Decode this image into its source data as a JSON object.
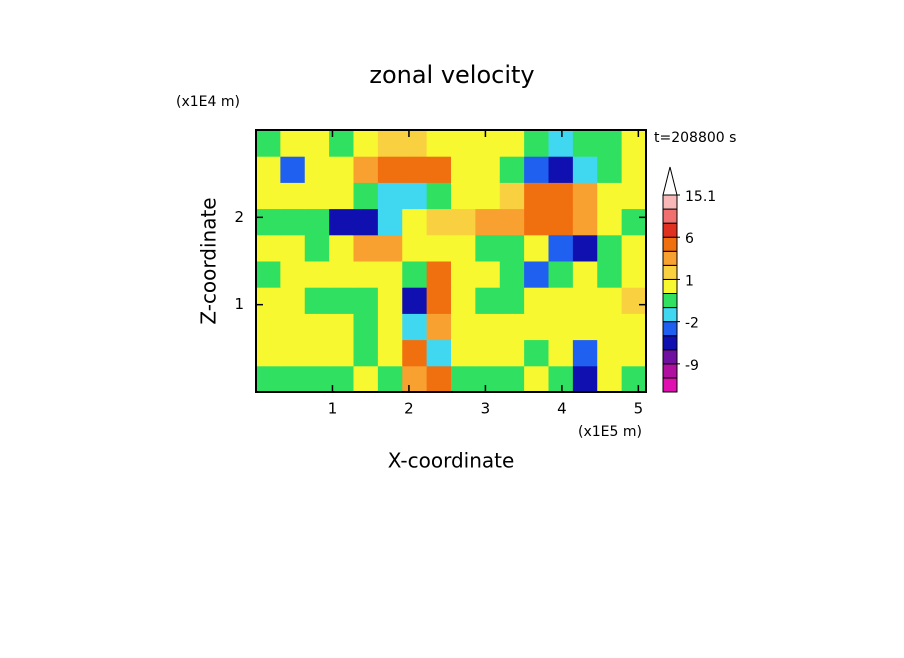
{
  "chart_data": {
    "type": "heatmap",
    "title": "zonal velocity",
    "xlabel": "X-coordinate",
    "ylabel": "Z-coordinate",
    "x_unit": "(x1E5 m)",
    "y_unit": "(x1E4 m)",
    "annotation": "t=208800 s",
    "xlim": [
      0,
      5.1
    ],
    "ylim": [
      0,
      3
    ],
    "xticks": [
      1,
      2,
      3,
      4,
      5
    ],
    "yticks": [
      1,
      2
    ],
    "z": [
      [
        -0.5,
        -0.5,
        -0.5,
        -0.5,
        0,
        -0.5,
        2,
        4,
        -0.5,
        -0.5,
        -0.5,
        0.5,
        -1,
        -4,
        0.5,
        -0.5
      ],
      [
        0.5,
        0.5,
        0.5,
        0.5,
        -0.5,
        0.5,
        3,
        -2,
        0.5,
        0.5,
        0.5,
        -0.5,
        0.5,
        -3,
        0.5,
        0.5
      ],
      [
        0.5,
        0.5,
        0.5,
        0,
        -0.5,
        0.5,
        -2,
        2,
        0.5,
        0.5,
        0,
        0,
        0.5,
        0.5,
        0.5,
        0.5
      ],
      [
        0.5,
        0.5,
        -0.5,
        -1,
        -0.5,
        0,
        -6,
        3,
        0.5,
        -0.5,
        -0.5,
        0,
        0.5,
        0,
        0.5,
        1
      ],
      [
        -0.5,
        0.5,
        0.5,
        0,
        0.5,
        0.5,
        -0.5,
        4,
        0.5,
        0,
        -1,
        -3,
        -0.5,
        0,
        -0.5,
        0
      ],
      [
        0.5,
        0,
        -1,
        0.5,
        2,
        2,
        0.5,
        0.5,
        0.5,
        -1,
        -0.5,
        0,
        -3,
        -4,
        -1,
        0
      ],
      [
        -1,
        -1,
        -0.5,
        -5,
        -6,
        -2,
        0.5,
        1,
        1,
        2,
        2,
        4,
        3,
        2,
        0,
        -1
      ],
      [
        0.5,
        0.5,
        0,
        0,
        -1,
        -2,
        -2,
        -1,
        0.5,
        0.5,
        1,
        3,
        3,
        2,
        0.5,
        0
      ],
      [
        0,
        -3,
        0,
        0.5,
        2,
        4,
        4,
        3,
        0.5,
        0,
        -1,
        -3,
        -4,
        -2,
        -1,
        0
      ],
      [
        -1,
        0,
        0,
        -1,
        0,
        1,
        1,
        0.5,
        0,
        0,
        0,
        -1,
        -2,
        -1,
        -1,
        0
      ]
    ],
    "levels": [
      -12,
      -9,
      -6,
      -3,
      -2,
      -1,
      0,
      1,
      2,
      3,
      6,
      9,
      12,
      15.1
    ],
    "colors": [
      "#e010b0",
      "#b010a0",
      "#7010a0",
      "#1010b0",
      "#2060f0",
      "#40d8f0",
      "#30e060",
      "#f8f830",
      "#f8d040",
      "#f8a030",
      "#f07010",
      "#e03020",
      "#f07070",
      "#f8b8b8",
      "#ffffff"
    ],
    "colorbar_ticks": [
      15.1,
      6,
      1,
      -2,
      -9
    ]
  }
}
